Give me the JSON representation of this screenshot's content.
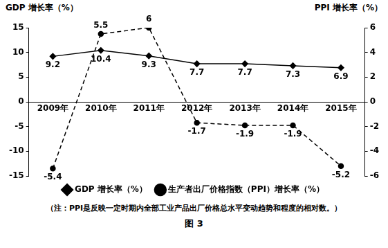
{
  "chart_data": {
    "type": "line",
    "y_label": "GDP 增长率（%）",
    "y2_label": "PPI 增长率（%）",
    "note": "（注：PPI是反映一定时期内全部工业产品出厂价格总水平变动趋势和程度的相对数。）",
    "caption": "图 3",
    "categories": [
      "2009年",
      "2010年",
      "2011年",
      "2012年",
      "2013年",
      "2014年",
      "2015年"
    ],
    "series": [
      {
        "name": "GDP 增长率（%）",
        "color": "#000000",
        "marker": "diamond",
        "line_style": "solid",
        "values": [
          9.2,
          10.4,
          9.3,
          7.7,
          7.7,
          7.3,
          6.9
        ]
      },
      {
        "name": "生产者出厂价格指数（PPI）增长率（%）",
        "color": "#000000",
        "marker": "circle",
        "line_style": "dashed",
        "axis": "y2",
        "values": [
          -5.4,
          5.5,
          6.0,
          -1.7,
          -1.9,
          -1.9,
          -5.2
        ]
      }
    ],
    "ylim": [
      -15,
      15
    ],
    "yticks": [
      -15,
      -10,
      -5,
      0,
      5,
      10,
      15
    ],
    "y2lim": [
      -6,
      6
    ],
    "y2ticks": [
      -6,
      -4,
      -2,
      0,
      2,
      4,
      6
    ],
    "grid": false,
    "legend": "bottom",
    "data_labels": true
  }
}
